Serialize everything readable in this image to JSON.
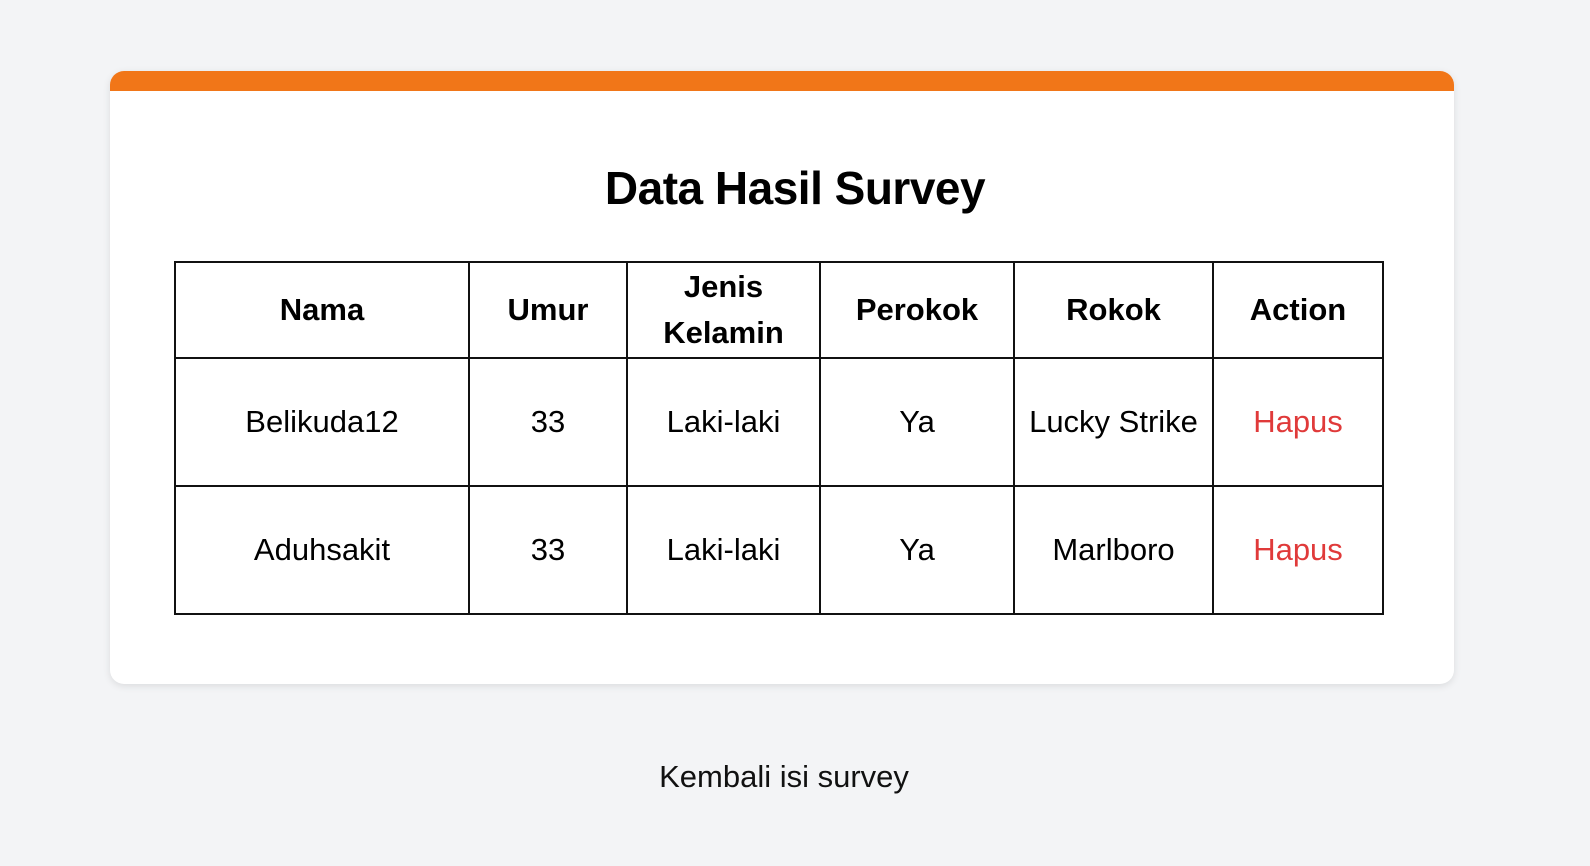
{
  "page": {
    "title": "Data Hasil Survey",
    "accent_color": "#f17618",
    "action_color": "#e03a3a"
  },
  "table": {
    "headers": {
      "nama": "Nama",
      "umur": "Umur",
      "jenis_kelamin": "Jenis Kelamin",
      "perokok": "Perokok",
      "rokok": "Rokok",
      "action": "Action"
    },
    "rows": [
      {
        "nama": "Belikuda12",
        "umur": "33",
        "jenis_kelamin": "Laki-laki",
        "perokok": "Ya",
        "rokok": "Lucky Strike",
        "action": "Hapus"
      },
      {
        "nama": "Aduhsakit",
        "umur": "33",
        "jenis_kelamin": "Laki-laki",
        "perokok": "Ya",
        "rokok": "Marlboro",
        "action": "Hapus"
      }
    ]
  },
  "footer": {
    "back_link": "Kembali isi survey"
  }
}
